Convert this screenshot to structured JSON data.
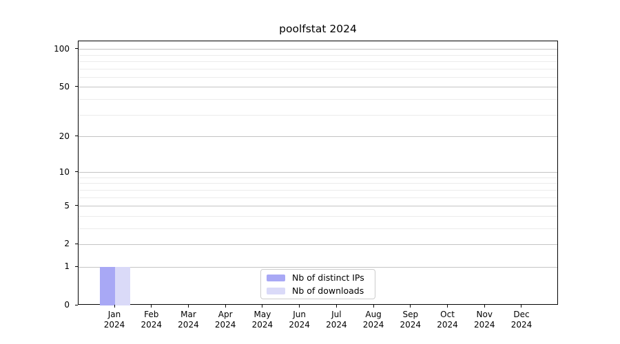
{
  "title": "poolfstat 2024",
  "chart_data": {
    "type": "bar",
    "title": "poolfstat 2024",
    "categories": [
      {
        "month": "Jan",
        "year": "2024"
      },
      {
        "month": "Feb",
        "year": "2024"
      },
      {
        "month": "Mar",
        "year": "2024"
      },
      {
        "month": "Apr",
        "year": "2024"
      },
      {
        "month": "May",
        "year": "2024"
      },
      {
        "month": "Jun",
        "year": "2024"
      },
      {
        "month": "Jul",
        "year": "2024"
      },
      {
        "month": "Aug",
        "year": "2024"
      },
      {
        "month": "Sep",
        "year": "2024"
      },
      {
        "month": "Oct",
        "year": "2024"
      },
      {
        "month": "Nov",
        "year": "2024"
      },
      {
        "month": "Dec",
        "year": "2024"
      }
    ],
    "series": [
      {
        "name": "Nb of distinct IPs",
        "color": "#a8a8f5",
        "values": [
          1,
          0,
          0,
          0,
          0,
          0,
          0,
          0,
          0,
          0,
          0,
          0
        ]
      },
      {
        "name": "Nb of downloads",
        "color": "#dadaf8",
        "values": [
          1,
          0,
          0,
          0,
          0,
          0,
          0,
          0,
          0,
          0,
          0,
          0
        ]
      }
    ],
    "yscale": "log1p",
    "ylim": [
      0,
      116
    ],
    "ytick_labels": [
      0,
      1,
      2,
      5,
      10,
      20,
      50,
      100
    ],
    "yticks_minor": [
      3,
      4,
      6,
      7,
      8,
      9,
      30,
      40,
      60,
      70,
      80,
      90
    ],
    "grid": true,
    "legend_position": "lower center"
  },
  "colors": {
    "grid_major": "#c3c3c3",
    "grid_minor": "#ebebeb",
    "spine": "#000000",
    "text": "#000000"
  }
}
